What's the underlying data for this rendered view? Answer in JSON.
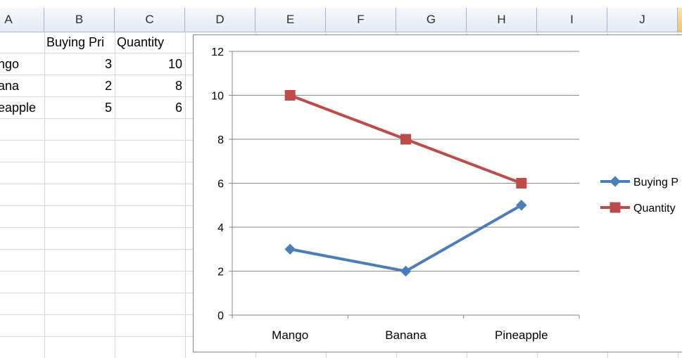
{
  "columns": [
    "A",
    "B",
    "C",
    "D",
    "E",
    "F",
    "G",
    "H",
    "I",
    "J"
  ],
  "selected_column": "J",
  "header_row": {
    "B": "Buying Pri",
    "C": "Quantity"
  },
  "rows": [
    {
      "A": "ngo",
      "B": "3",
      "C": "10"
    },
    {
      "A": "ana",
      "B": "2",
      "C": "8"
    },
    {
      "A": "eapple",
      "B": "5",
      "C": "6"
    }
  ],
  "colors": {
    "buying": "#4a7ebb",
    "quantity": "#be4b48",
    "gridline": "#868686",
    "cell_border": "#d0d7e5"
  },
  "chart_data": {
    "type": "line",
    "categories": [
      "Mango",
      "Banana",
      "Pineapple"
    ],
    "series": [
      {
        "name": "Buying P",
        "values": [
          3,
          2,
          5
        ],
        "marker": "diamond",
        "color": "#4a7ebb"
      },
      {
        "name": "Quantity",
        "values": [
          10,
          8,
          6
        ],
        "marker": "square",
        "color": "#be4b48"
      }
    ],
    "ylim": [
      0,
      12
    ],
    "yticks": [
      "0",
      "2",
      "4",
      "6",
      "8",
      "10",
      "12"
    ],
    "grid": true,
    "legend": "right"
  }
}
